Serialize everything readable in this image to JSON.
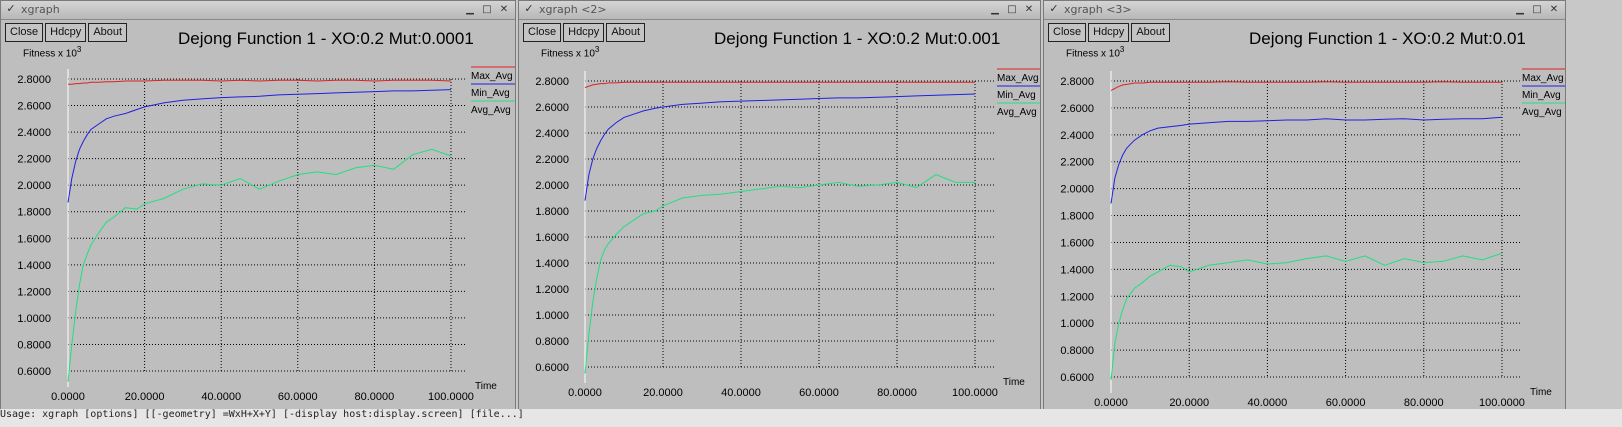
{
  "windows": [
    {
      "window_title": "xgraph",
      "buttons": [
        "Close",
        "Hdcpy",
        "About"
      ],
      "title": "Dejong Function 1 - XO:0.2 Mut:0.0001",
      "ylabel_base": "Fitness x 10",
      "ylabel_exp": "3",
      "xlabel": "Time"
    },
    {
      "window_title": "xgraph <2>",
      "buttons": [
        "Close",
        "Hdcpy",
        "About"
      ],
      "title": "Dejong Function 1 - XO:0.2 Mut:0.001",
      "ylabel_base": "Fitness x 10",
      "ylabel_exp": "3",
      "xlabel": "Time"
    },
    {
      "window_title": "xgraph <3>",
      "buttons": [
        "Close",
        "Hdcpy",
        "About"
      ],
      "title": "Dejong Function 1 - XO:0.2 Mut:0.01",
      "ylabel_base": "Fitness x 10",
      "ylabel_exp": "3",
      "xlabel": "Time"
    }
  ],
  "colors": {
    "Max_Avg": "#e02020",
    "Min_Avg": "#2020e0",
    "Avg_Avg": "#20e080",
    "grid": "#000000",
    "plot_bg": "#bebebe",
    "y_axis": "#ffffff"
  },
  "chart_data": [
    {
      "type": "line",
      "title": "Dejong Function 1 - XO:0.2 Mut:0.0001",
      "xlabel": "Time",
      "ylabel": "Fitness x 10^3",
      "xlim": [
        0,
        100
      ],
      "ylim": [
        0.6,
        2.8
      ],
      "xticks": [
        "0.0000",
        "20.0000",
        "40.0000",
        "60.0000",
        "80.0000",
        "100.0000"
      ],
      "yticks": [
        "2.8000",
        "2.6000",
        "2.4000",
        "2.2000",
        "2.0000",
        "1.8000",
        "1.6000",
        "1.4000",
        "1.2000",
        "1.0000",
        "0.8000",
        "0.6000"
      ],
      "grid": true,
      "legend_position": "top-right",
      "x": [
        0,
        1,
        2,
        3,
        4,
        5,
        6,
        8,
        10,
        12,
        15,
        18,
        20,
        25,
        30,
        35,
        40,
        45,
        50,
        55,
        60,
        65,
        70,
        75,
        80,
        85,
        90,
        95,
        100
      ],
      "series": [
        {
          "name": "Max_Avg",
          "values": [
            2.76,
            2.76,
            2.765,
            2.765,
            2.77,
            2.77,
            2.775,
            2.775,
            2.78,
            2.78,
            2.785,
            2.785,
            2.785,
            2.79,
            2.79,
            2.79,
            2.785,
            2.79,
            2.785,
            2.79,
            2.79,
            2.785,
            2.79,
            2.79,
            2.785,
            2.79,
            2.79,
            2.79,
            2.785
          ]
        },
        {
          "name": "Min_Avg",
          "values": [
            1.87,
            2.05,
            2.18,
            2.27,
            2.33,
            2.38,
            2.42,
            2.46,
            2.5,
            2.52,
            2.54,
            2.57,
            2.59,
            2.62,
            2.64,
            2.65,
            2.66,
            2.665,
            2.67,
            2.68,
            2.685,
            2.69,
            2.695,
            2.7,
            2.705,
            2.71,
            2.71,
            2.715,
            2.72
          ]
        },
        {
          "name": "Avg_Avg",
          "values": [
            0.52,
            0.8,
            1.05,
            1.25,
            1.4,
            1.48,
            1.55,
            1.64,
            1.72,
            1.76,
            1.83,
            1.82,
            1.86,
            1.9,
            1.97,
            2.01,
            2.0,
            2.05,
            1.97,
            2.03,
            2.08,
            2.1,
            2.08,
            2.13,
            2.15,
            2.12,
            2.23,
            2.27,
            2.22
          ]
        }
      ]
    },
    {
      "type": "line",
      "title": "Dejong Function 1 - XO:0.2 Mut:0.001",
      "xlabel": "Time",
      "ylabel": "Fitness x 10^3",
      "xlim": [
        0,
        100
      ],
      "ylim": [
        0.6,
        2.8
      ],
      "xticks": [
        "0.0000",
        "20.0000",
        "40.0000",
        "60.0000",
        "80.0000",
        "100.0000"
      ],
      "yticks": [
        "2.8000",
        "2.6000",
        "2.4000",
        "2.2000",
        "2.0000",
        "1.8000",
        "1.6000",
        "1.4000",
        "1.2000",
        "1.0000",
        "0.8000",
        "0.6000"
      ],
      "grid": true,
      "legend_position": "top-right",
      "x": [
        0,
        1,
        2,
        3,
        4,
        5,
        6,
        8,
        10,
        12,
        15,
        18,
        20,
        25,
        30,
        35,
        40,
        45,
        50,
        55,
        60,
        65,
        70,
        75,
        80,
        85,
        90,
        95,
        100
      ],
      "series": [
        {
          "name": "Max_Avg",
          "values": [
            2.75,
            2.76,
            2.77,
            2.775,
            2.78,
            2.78,
            2.785,
            2.785,
            2.79,
            2.79,
            2.79,
            2.79,
            2.79,
            2.79,
            2.79,
            2.79,
            2.79,
            2.79,
            2.79,
            2.79,
            2.79,
            2.79,
            2.79,
            2.79,
            2.79,
            2.79,
            2.79,
            2.79,
            2.79
          ]
        },
        {
          "name": "Min_Avg",
          "values": [
            1.88,
            2.08,
            2.2,
            2.28,
            2.34,
            2.39,
            2.43,
            2.48,
            2.52,
            2.54,
            2.57,
            2.59,
            2.6,
            2.62,
            2.63,
            2.64,
            2.645,
            2.65,
            2.655,
            2.66,
            2.665,
            2.67,
            2.67,
            2.675,
            2.68,
            2.685,
            2.69,
            2.695,
            2.7
          ]
        },
        {
          "name": "Avg_Avg",
          "values": [
            0.55,
            0.85,
            1.1,
            1.28,
            1.42,
            1.5,
            1.55,
            1.62,
            1.68,
            1.72,
            1.78,
            1.8,
            1.84,
            1.9,
            1.92,
            1.93,
            1.95,
            1.97,
            1.99,
            1.98,
            2.0,
            2.02,
            1.99,
            2.0,
            2.02,
            1.98,
            2.08,
            2.02,
            2.02
          ]
        }
      ]
    },
    {
      "type": "line",
      "title": "Dejong Function 1 - XO:0.2 Mut:0.01",
      "xlabel": "Time",
      "ylabel": "Fitness x 10^3",
      "xlim": [
        0,
        100
      ],
      "ylim": [
        0.6,
        2.8
      ],
      "xticks": [
        "0.0000",
        "20.0000",
        "40.0000",
        "60.0000",
        "80.0000",
        "100.0000"
      ],
      "yticks": [
        "2.8000",
        "2.6000",
        "2.4000",
        "2.2000",
        "2.0000",
        "1.8000",
        "1.6000",
        "1.4000",
        "1.2000",
        "1.0000",
        "0.8000",
        "0.6000"
      ],
      "grid": true,
      "legend_position": "top-right",
      "x": [
        0,
        1,
        2,
        3,
        4,
        5,
        6,
        8,
        10,
        12,
        15,
        18,
        20,
        25,
        30,
        35,
        40,
        45,
        50,
        55,
        60,
        65,
        70,
        75,
        80,
        85,
        90,
        95,
        100
      ],
      "series": [
        {
          "name": "Max_Avg",
          "values": [
            2.73,
            2.745,
            2.76,
            2.77,
            2.775,
            2.78,
            2.785,
            2.785,
            2.79,
            2.79,
            2.79,
            2.79,
            2.79,
            2.79,
            2.795,
            2.79,
            2.79,
            2.79,
            2.79,
            2.795,
            2.79,
            2.79,
            2.79,
            2.79,
            2.79,
            2.795,
            2.79,
            2.79,
            2.79
          ]
        },
        {
          "name": "Min_Avg",
          "values": [
            1.89,
            2.08,
            2.18,
            2.25,
            2.3,
            2.33,
            2.36,
            2.4,
            2.43,
            2.45,
            2.46,
            2.47,
            2.48,
            2.49,
            2.5,
            2.5,
            2.505,
            2.51,
            2.51,
            2.52,
            2.51,
            2.51,
            2.515,
            2.52,
            2.51,
            2.515,
            2.52,
            2.52,
            2.53
          ]
        },
        {
          "name": "Avg_Avg",
          "values": [
            0.58,
            0.85,
            1.0,
            1.1,
            1.18,
            1.22,
            1.26,
            1.3,
            1.35,
            1.38,
            1.43,
            1.42,
            1.38,
            1.43,
            1.45,
            1.47,
            1.44,
            1.45,
            1.48,
            1.5,
            1.46,
            1.5,
            1.43,
            1.48,
            1.45,
            1.46,
            1.5,
            1.47,
            1.52
          ]
        }
      ]
    }
  ],
  "status_line": "Usage: xgraph [options] [[-geometry] =WxH+X+Y] [-display host:display.screen] [file...]"
}
